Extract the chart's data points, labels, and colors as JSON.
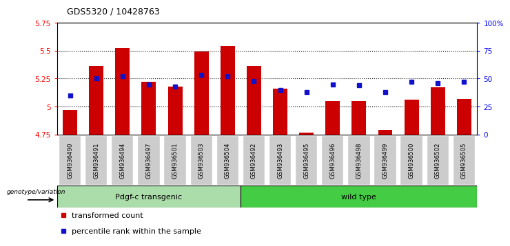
{
  "title": "GDS5320 / 10428763",
  "samples": [
    "GSM936490",
    "GSM936491",
    "GSM936494",
    "GSM936497",
    "GSM936501",
    "GSM936503",
    "GSM936504",
    "GSM936492",
    "GSM936493",
    "GSM936495",
    "GSM936496",
    "GSM936498",
    "GSM936499",
    "GSM936500",
    "GSM936502",
    "GSM936505"
  ],
  "red_values": [
    4.97,
    5.36,
    5.52,
    5.22,
    5.18,
    5.49,
    5.54,
    5.36,
    5.16,
    4.77,
    5.05,
    5.05,
    4.79,
    5.06,
    5.17,
    5.07
  ],
  "blue_values": [
    35,
    50,
    52,
    45,
    43,
    53,
    52,
    48,
    40,
    38,
    45,
    44,
    38,
    47,
    46,
    47
  ],
  "group1_label": "Pdgf-c transgenic",
  "group1_count": 7,
  "group2_label": "wild type",
  "group2_count": 9,
  "group_label": "genotype/variation",
  "ylim_left": [
    4.75,
    5.75
  ],
  "ylim_right": [
    0,
    100
  ],
  "yticks_left": [
    4.75,
    5.0,
    5.25,
    5.5,
    5.75
  ],
  "ytick_labels_left": [
    "4.75",
    "5",
    "5.25",
    "5.5",
    "5.75"
  ],
  "yticks_right": [
    0,
    25,
    50,
    75,
    100
  ],
  "ytick_labels_right": [
    "0",
    "25",
    "50",
    "75",
    "100%"
  ],
  "grid_values": [
    5.0,
    5.25,
    5.5
  ],
  "bar_color": "#cc0000",
  "blue_color": "#1111cc",
  "group1_color": "#aaddaa",
  "group2_color": "#44cc44",
  "tick_bg_color": "#cccccc",
  "legend_red": "transformed count",
  "legend_blue": "percentile rank within the sample",
  "bar_bottom": 4.75,
  "bar_width": 0.55
}
